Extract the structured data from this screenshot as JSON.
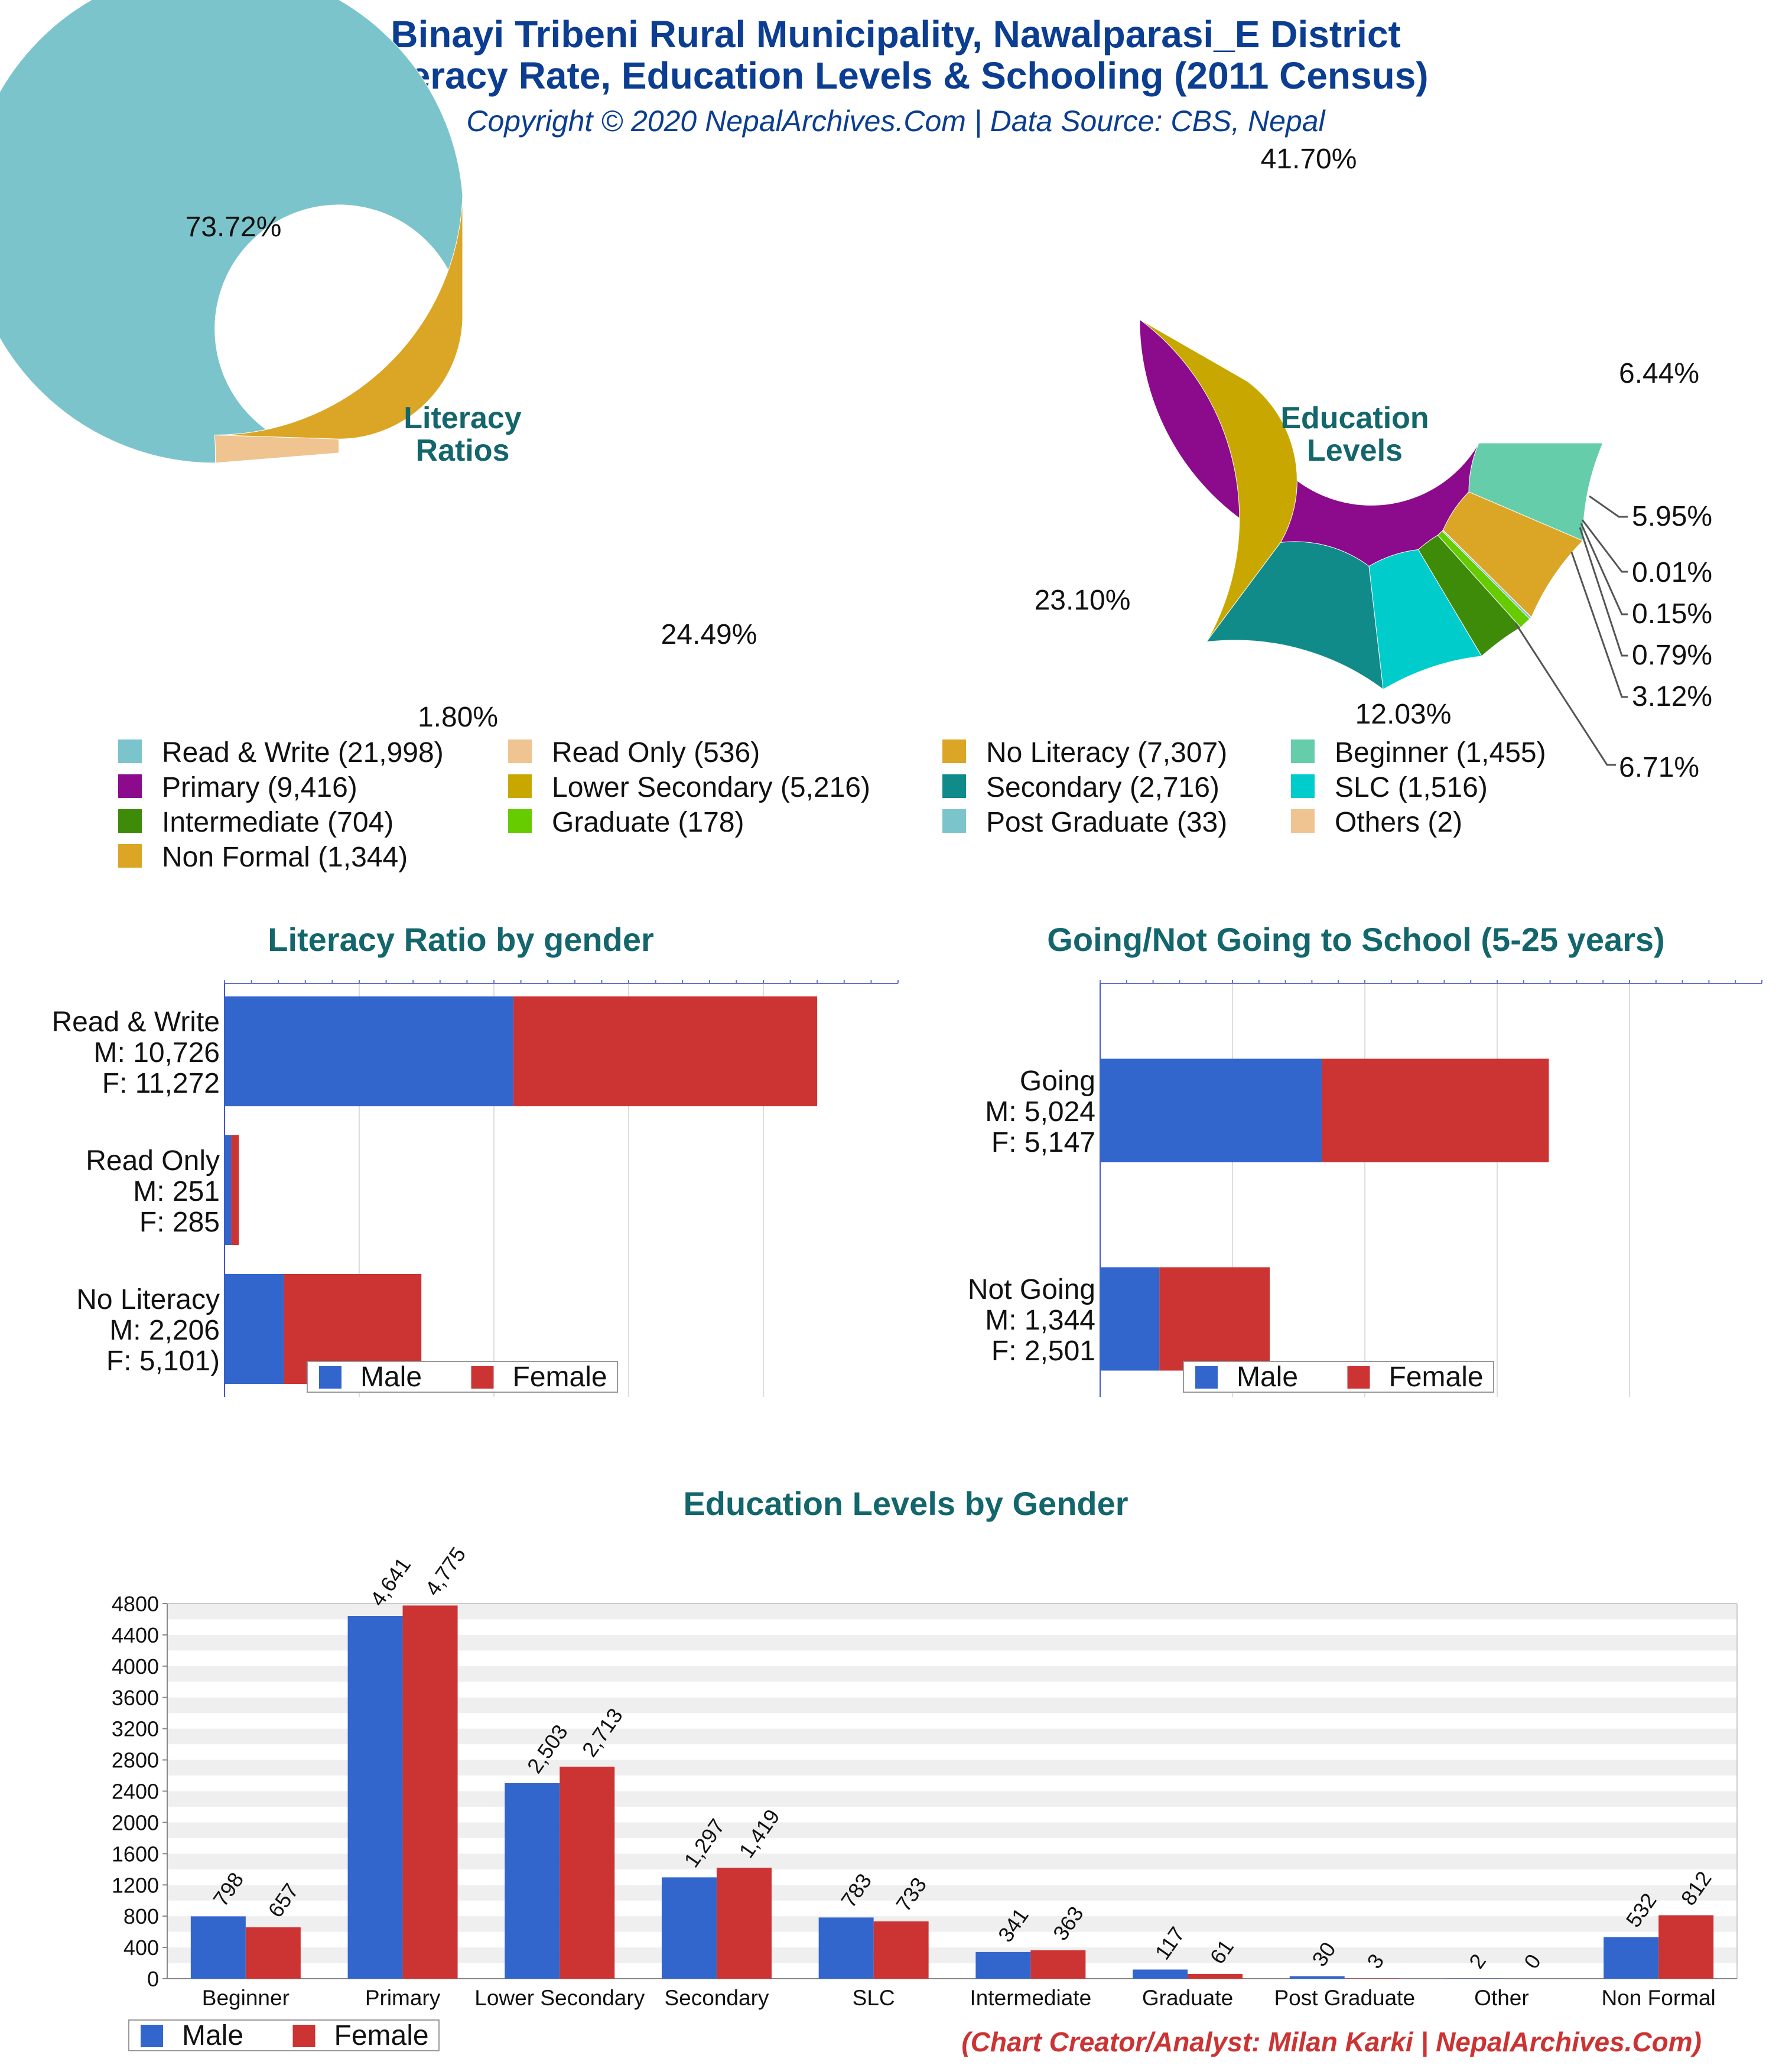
{
  "header": {
    "title_line1": "Binayi Tribeni Rural Municipality, Nawalparasi_E District",
    "title_line2": "Literacy Rate, Education Levels & Schooling (2011 Census)",
    "copyright": "Copyright © 2020 NepalArchives.Com | Data Source: CBS, Nepal"
  },
  "colors": {
    "male": "#3366cc",
    "female": "#cc3333",
    "title": "#0b3d91",
    "section_title": "#13666b",
    "credit": "#cc3333"
  },
  "chart_data": [
    {
      "id": "literacy_donut",
      "type": "pie",
      "center_label": [
        "Literacy",
        "Ratios"
      ],
      "start_angle_deg": 90,
      "slices": [
        {
          "label": "Read & Write",
          "value": 21998,
          "pct": "73.72%",
          "color": "#7cc4cc"
        },
        {
          "label": "Read Only",
          "value": 536,
          "pct": "1.80%",
          "color": "#efc491"
        },
        {
          "label": "No Literacy",
          "value": 7307,
          "pct": "24.49%",
          "color": "#dba625"
        }
      ]
    },
    {
      "id": "education_donut",
      "type": "pie",
      "center_label": [
        "Education",
        "Levels"
      ],
      "start_angle_deg": 0,
      "slices": [
        {
          "label": "Primary",
          "value": 9416,
          "pct": "41.70%",
          "color": "#8c0a8c"
        },
        {
          "label": "Lower Secondary",
          "value": 5216,
          "pct": "23.10%",
          "color": "#c8a800"
        },
        {
          "label": "Secondary",
          "value": 2716,
          "pct": "12.03%",
          "color": "#118a8a"
        },
        {
          "label": "SLC",
          "value": 1516,
          "pct": "6.71%",
          "color": "#00cccc"
        },
        {
          "label": "Intermediate",
          "value": 704,
          "pct": "3.12%",
          "color": "#3e8b0a"
        },
        {
          "label": "Graduate",
          "value": 178,
          "pct": "0.79%",
          "color": "#66cc00"
        },
        {
          "label": "Post Graduate",
          "value": 33,
          "pct": "0.15%",
          "color": "#7cc4cc"
        },
        {
          "label": "Others",
          "value": 2,
          "pct": "0.01%",
          "color": "#efc491"
        },
        {
          "label": "Non Formal",
          "value": 1344,
          "pct": "5.95%",
          "color": "#dba625"
        },
        {
          "label": "Beginner",
          "value": 1455,
          "pct": "6.44%",
          "color": "#66cdaa"
        }
      ]
    },
    {
      "id": "literacy_by_gender",
      "type": "bar",
      "orientation": "horizontal",
      "stacked": true,
      "title": "Literacy Ratio by gender",
      "categories": [
        "Read & Write",
        "Read Only",
        "No Literacy"
      ],
      "category_labels": [
        [
          "Read & Write",
          "M: 10,726",
          "F: 11,272"
        ],
        [
          "Read Only",
          "M: 251",
          "F: 285"
        ],
        [
          "No Literacy",
          "M: 2,206",
          "F: 5,101)"
        ]
      ],
      "series": [
        {
          "name": "Male",
          "values": [
            10726,
            251,
            2206
          ]
        },
        {
          "name": "Female",
          "values": [
            11272,
            285,
            5101
          ]
        }
      ],
      "xlim": [
        0,
        25000
      ],
      "legend_position": "bottom"
    },
    {
      "id": "school_going",
      "type": "bar",
      "orientation": "horizontal",
      "stacked": true,
      "title": "Going/Not Going to School (5-25 years)",
      "categories": [
        "Going",
        "Not Going"
      ],
      "category_labels": [
        [
          "Going",
          "M: 5,024",
          "F: 5,147"
        ],
        [
          "Not Going",
          "M: 1,344",
          "F: 2,501"
        ]
      ],
      "series": [
        {
          "name": "Male",
          "values": [
            5024,
            1344
          ]
        },
        {
          "name": "Female",
          "values": [
            5147,
            2501
          ]
        }
      ],
      "xlim": [
        0,
        15000
      ],
      "legend_position": "bottom"
    },
    {
      "id": "education_by_gender",
      "type": "bar",
      "orientation": "vertical",
      "title": "Education Levels by Gender",
      "categories": [
        "Beginner",
        "Primary",
        "Lower Secondary",
        "Secondary",
        "SLC",
        "Intermediate",
        "Graduate",
        "Post Graduate",
        "Other",
        "Non Formal"
      ],
      "series": [
        {
          "name": "Male",
          "values": [
            798,
            4641,
            2503,
            1297,
            783,
            341,
            117,
            30,
            2,
            532
          ],
          "labels": [
            "798",
            "4,641",
            "2,503",
            "1,297",
            "783",
            "341",
            "117",
            "30",
            "2",
            "532"
          ]
        },
        {
          "name": "Female",
          "values": [
            657,
            4775,
            2713,
            1419,
            733,
            363,
            61,
            3,
            0,
            812
          ],
          "labels": [
            "657",
            "4,775",
            "2,713",
            "1,419",
            "733",
            "363",
            "61",
            "3",
            "0",
            "812"
          ]
        }
      ],
      "ylim": [
        0,
        4800
      ],
      "yticks": [
        "0",
        "400",
        "800",
        "1200",
        "1600",
        "2000",
        "2400",
        "2800",
        "3200",
        "3600",
        "4000",
        "4400",
        "4800"
      ],
      "grid": true,
      "legend_position": "bottom-left"
    }
  ],
  "pie_legend": [
    {
      "label": "Read & Write (21,998)",
      "color": "#7cc4cc"
    },
    {
      "label": "Read Only (536)",
      "color": "#efc491"
    },
    {
      "label": "No Literacy (7,307)",
      "color": "#dba625"
    },
    {
      "label": "Beginner (1,455)",
      "color": "#66cdaa"
    },
    {
      "label": "Primary (9,416)",
      "color": "#8c0a8c"
    },
    {
      "label": "Lower Secondary (5,216)",
      "color": "#c8a800"
    },
    {
      "label": "Secondary (2,716)",
      "color": "#118a8a"
    },
    {
      "label": "SLC (1,516)",
      "color": "#00cccc"
    },
    {
      "label": "Intermediate (704)",
      "color": "#3e8b0a"
    },
    {
      "label": "Graduate (178)",
      "color": "#66cc00"
    },
    {
      "label": "Post Graduate (33)",
      "color": "#7cc4cc"
    },
    {
      "label": "Others (2)",
      "color": "#efc491"
    },
    {
      "label": "Non Formal (1,344)",
      "color": "#dba625"
    }
  ],
  "legend_labels": {
    "male": "Male",
    "female": "Female"
  },
  "credit": "(Chart Creator/Analyst: Milan Karki | NepalArchives.Com)"
}
